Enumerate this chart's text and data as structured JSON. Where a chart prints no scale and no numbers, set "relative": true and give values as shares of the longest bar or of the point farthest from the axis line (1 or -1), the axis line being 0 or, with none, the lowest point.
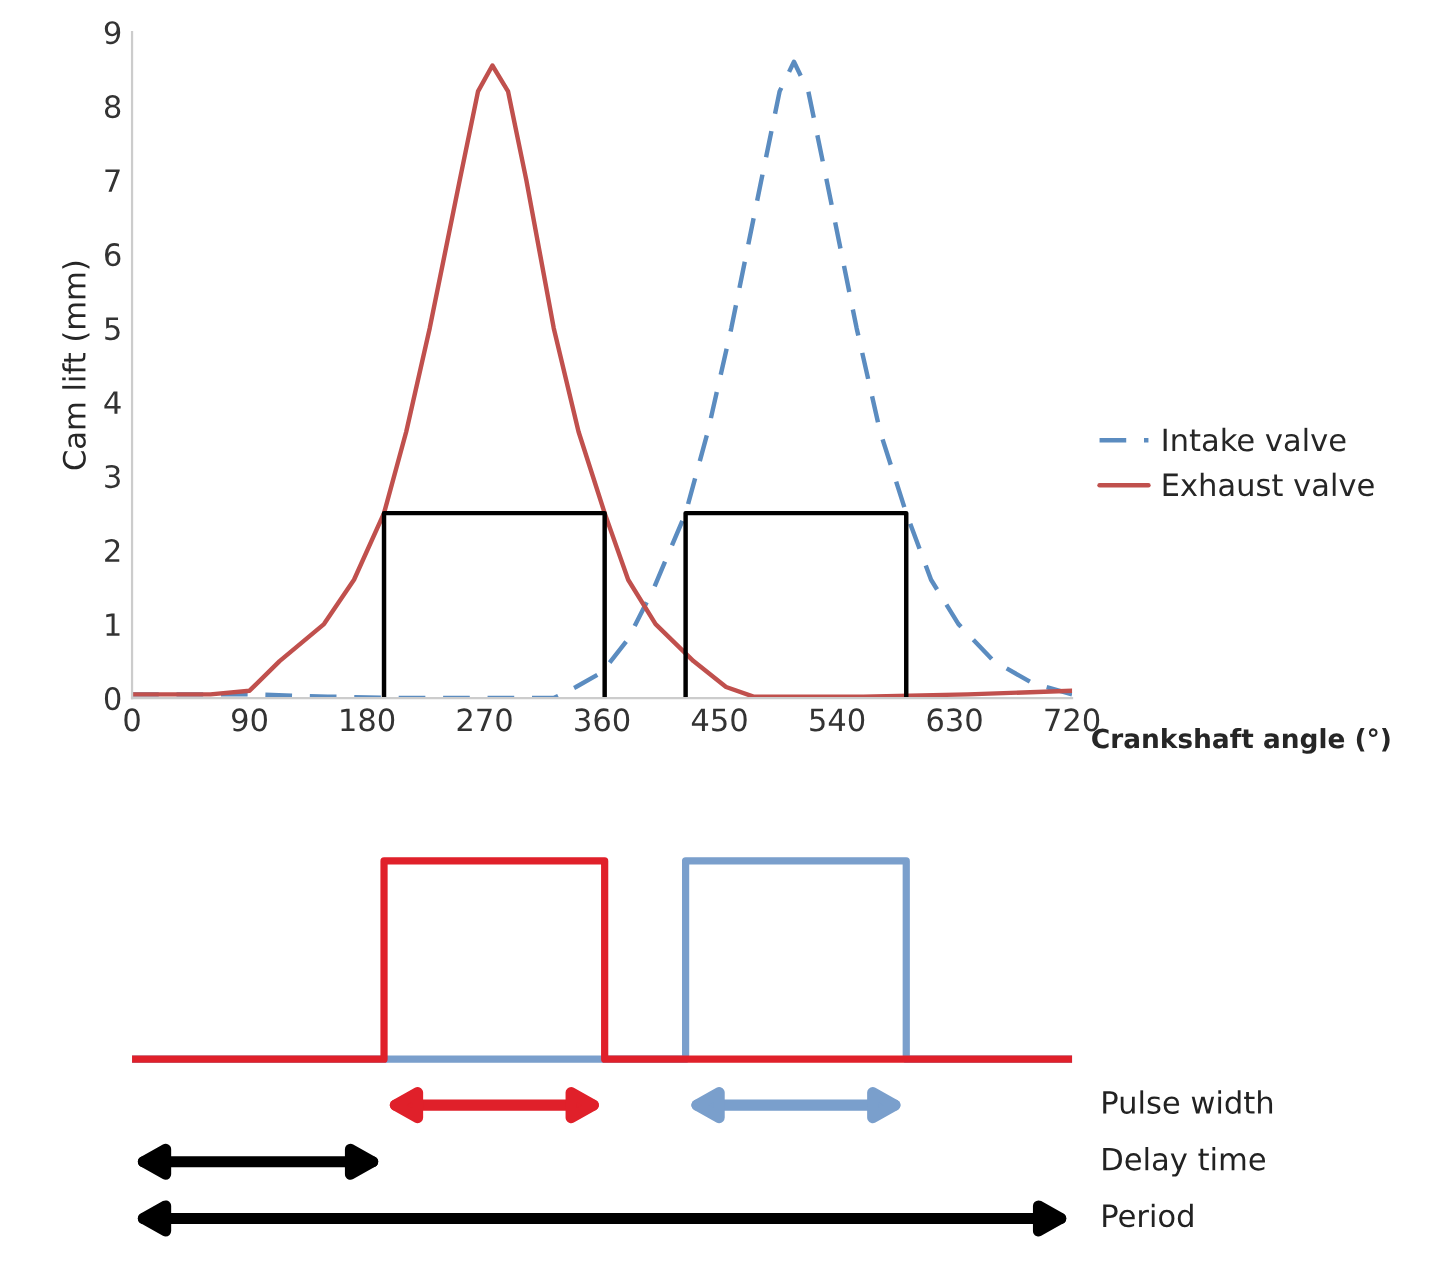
{
  "chart_data": [
    {
      "type": "line",
      "ylabel": "Cam lift (mm)",
      "xlabel": "Crankshaft angle (°)",
      "xlim": [
        0,
        720
      ],
      "xticks": [
        0,
        90,
        180,
        270,
        360,
        450,
        540,
        630,
        720
      ],
      "ylim": [
        0,
        9
      ],
      "yticks": [
        0,
        1,
        2,
        3,
        4,
        5,
        6,
        7,
        8,
        9
      ],
      "grid": false,
      "legend": "right",
      "series": [
        {
          "name": "Intake valve",
          "color": "#5b8cc0",
          "line_style": "dashed",
          "x": [
            0,
            90,
            150,
            200,
            323,
            340,
            360,
            380,
            400,
            424,
            441,
            459,
            482,
            496,
            507,
            518,
            532,
            555,
            573,
            593,
            612,
            633,
            660,
            690,
            720
          ],
          "values": [
            0.05,
            0.05,
            0.02,
            0,
            0,
            0.15,
            0.35,
            0.8,
            1.5,
            2.5,
            3.6,
            5,
            7,
            8.2,
            8.6,
            8.2,
            7,
            5,
            3.6,
            2.5,
            1.6,
            1,
            0.5,
            0.2,
            0.05
          ]
        },
        {
          "name": "Exhaust valve",
          "color": "#c0504d",
          "line_style": "solid",
          "x": [
            0,
            60,
            90,
            113,
            147,
            170,
            193,
            210,
            228,
            251,
            265,
            276,
            288,
            302,
            323,
            342,
            362,
            380,
            401,
            430,
            455,
            476,
            560,
            640,
            720
          ],
          "values": [
            0.05,
            0.05,
            0.1,
            0.5,
            1,
            1.6,
            2.5,
            3.6,
            5,
            7,
            8.2,
            8.55,
            8.2,
            7,
            5,
            3.6,
            2.5,
            1.6,
            1,
            0.5,
            0.15,
            0.02,
            0.02,
            0.05,
            0.1
          ]
        },
        {
          "color": "#000000",
          "line_style": "solid",
          "x": [
            193,
            193,
            362,
            362
          ],
          "values": [
            0,
            2.5,
            2.5,
            0
          ]
        },
        {
          "color": "#000000",
          "line_style": "solid",
          "x": [
            424,
            424,
            593,
            593
          ],
          "values": [
            0,
            2.5,
            2.5,
            0
          ]
        }
      ]
    },
    {
      "type": "step",
      "relative": true,
      "xlim": [
        0,
        720
      ],
      "tick_labels": false,
      "grid": false,
      "annotations": [
        "Pulse width",
        "Delay time",
        "Period"
      ],
      "series": [
        {
          "color": "#7a9fcc",
          "x": [
            0,
            424,
            424,
            593,
            593,
            720
          ],
          "values": [
            0,
            0,
            1,
            1,
            0,
            0
          ]
        },
        {
          "color": "#e0202a",
          "x": [
            0,
            193,
            193,
            362,
            362,
            720
          ],
          "values": [
            0,
            0,
            1,
            1,
            0,
            0
          ]
        }
      ]
    }
  ]
}
